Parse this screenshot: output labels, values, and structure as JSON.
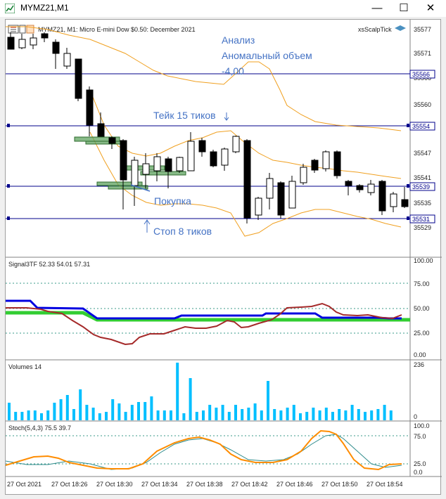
{
  "window": {
    "title": "MYMZ21,M1",
    "minimize": "—",
    "restore": "☐",
    "close": "✕"
  },
  "chart": {
    "header": "MYMZ21, M1:  Micro E-mini Dow $0.50: December 2021",
    "expert": "xsScalpTick",
    "annotations": {
      "analysis": "Анализ",
      "anomaly": "Аномальный объем",
      "anomaly_value": "-4,00",
      "take": "Тейк 15 тиков",
      "buy": "Покупка",
      "stop": "Стоп 8 тиков"
    },
    "price_ticks": [
      "35577",
      "35571",
      "35566",
      "35560",
      "35554",
      "35547",
      "35541",
      "35535",
      "35529"
    ],
    "level_labels": [
      "35566",
      "35554",
      "35539",
      "35531"
    ],
    "indicators": {
      "signal_label": "Signal3TF 52.33 54.01 57.31",
      "signal_ticks": [
        "100.00",
        "75.00",
        "50.00",
        "25.00",
        "0.00"
      ],
      "volumes_label": "Volumes 14",
      "volumes_top": "236",
      "volumes_bottom": "0",
      "stoch_label": "Stoch(5,4,3) 75.5 39.7",
      "stoch_ticks": [
        "100.0",
        "75.0",
        "25.0",
        "0.0"
      ]
    },
    "time_labels": [
      "27 Oct 2021",
      "27 Oct 18:26",
      "27 Oct 18:30",
      "27 Oct 18:34",
      "27 Oct 18:38",
      "27 Oct 18:42",
      "27 Oct 18:46",
      "27 Oct 18:50",
      "27 Oct 18:54"
    ],
    "colors": {
      "bull": "#ffffff",
      "bear": "#000000",
      "level_line": "#00008b",
      "annotation": "#4472c4",
      "band": "#f0a020",
      "volume": "#00bfff",
      "signal_blue": "#0000e0",
      "signal_green": "#32cd32",
      "signal_red": "#a52a2a",
      "stoch_main": "#ff8c00",
      "stoch_signal": "#2e8b8b"
    }
  }
}
